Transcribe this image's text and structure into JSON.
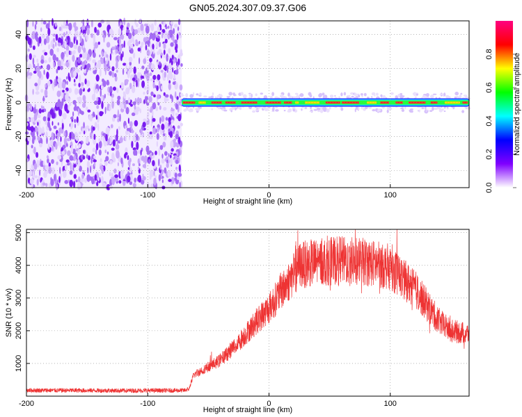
{
  "title": "GN05.2024.307.09.37.G06",
  "chart_data": [
    {
      "type": "heatmap",
      "xlabel": "Height of straight line (km)",
      "ylabel": "Frequency (Hz)",
      "xlim": [
        -200,
        165
      ],
      "ylim": [
        -50,
        48
      ],
      "xticks": [
        -200,
        -100,
        0,
        100
      ],
      "yticks": [
        -40,
        -20,
        0,
        20,
        40
      ],
      "grid": true,
      "noise_region_x": [
        -200,
        -72
      ],
      "signal_region_x": [
        -72,
        165
      ],
      "signal_frequency": 0,
      "colorbar": {
        "label": "Normalized spectral amplitude",
        "range": [
          0,
          1
        ],
        "ticks": [
          0.0,
          0.2,
          0.4,
          0.6,
          0.8
        ],
        "tick_labels": [
          "0.0",
          "0.2",
          "0.4",
          "0.6",
          "0.8"
        ],
        "colors": [
          "#ffffff",
          "#8000ff",
          "#0000ff",
          "#00ffff",
          "#00ff00",
          "#ffff00",
          "#ff0000",
          "#ff0080"
        ]
      }
    },
    {
      "type": "line",
      "xlabel": "Height of straight line (km)",
      "ylabel": "SNR (10 * v/v)",
      "xlim": [
        -200,
        165
      ],
      "ylim": [
        0,
        5100
      ],
      "xticks": [
        -200,
        -100,
        0,
        100
      ],
      "yticks": [
        1000,
        2000,
        3000,
        4000,
        5000
      ],
      "grid": true,
      "color": "#ee3333",
      "envelope": {
        "x": [
          -200,
          -120,
          -70,
          -66,
          -62,
          -55,
          -40,
          -25,
          -10,
          0,
          10,
          20,
          25,
          40,
          60,
          80,
          100,
          110,
          120,
          130,
          140,
          150,
          165
        ],
        "y": [
          180,
          170,
          175,
          220,
          650,
          800,
          1100,
          1650,
          2300,
          2700,
          3200,
          3700,
          4000,
          4100,
          4150,
          4100,
          3950,
          3600,
          3300,
          2800,
          2300,
          2000,
          1900
        ]
      }
    }
  ]
}
